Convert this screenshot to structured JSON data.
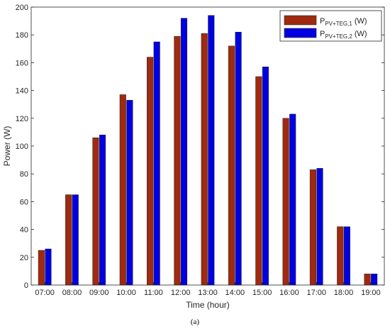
{
  "chart_data": {
    "type": "bar",
    "xlabel": "Time (hour)",
    "ylabel": "Power (W)",
    "ylim": [
      0,
      200
    ],
    "yticks": [
      0,
      20,
      40,
      60,
      80,
      100,
      120,
      140,
      160,
      180,
      200
    ],
    "categories": [
      "07:00",
      "08:00",
      "09:00",
      "10:00",
      "11:00",
      "12:00",
      "13:00",
      "14:00",
      "15:00",
      "16:00",
      "17:00",
      "18:00",
      "19:00"
    ],
    "series": [
      {
        "name_main": "P",
        "name_sub": "PV+TEG,1",
        "name_unit": "(W)",
        "color": "#a0290f",
        "values": [
          25,
          65,
          106,
          137,
          164,
          179,
          181,
          172,
          150,
          120,
          83,
          42,
          8
        ]
      },
      {
        "name_main": "P",
        "name_sub": "PV+TEG,2",
        "name_unit": "(W)",
        "color": "#0000e0",
        "values": [
          26,
          65,
          108,
          133,
          175,
          192,
          194,
          182,
          157,
          123,
          84,
          42,
          8
        ]
      }
    ],
    "grid": false,
    "legend_position": "top-right",
    "caption": "(a)"
  }
}
